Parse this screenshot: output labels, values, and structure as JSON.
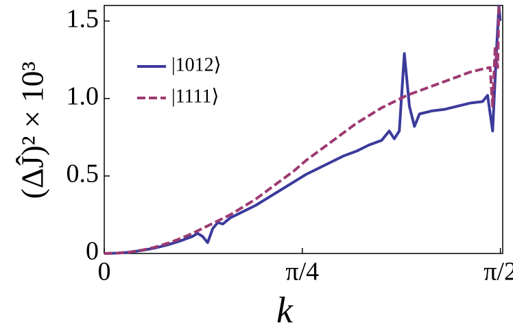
{
  "chart_data": {
    "type": "line",
    "xlabel": "k",
    "ylabel": "(ΔĴ)² × 10³",
    "xlim": [
      0,
      1.58
    ],
    "ylim": [
      0,
      1.6
    ],
    "xticks": [
      0,
      {
        "value": 0.7854,
        "label": "π/4"
      },
      {
        "value": 1.5708,
        "label": "π/2"
      }
    ],
    "yticks": [
      0,
      0.5,
      {
        "value": 1,
        "label": "1.0"
      },
      1.5
    ],
    "legend": "upper left",
    "series": [
      {
        "name": "|1012⟩",
        "color": "#3b3b9c",
        "dash": "solid",
        "x": [
          0,
          0.05,
          0.1,
          0.15,
          0.2,
          0.25,
          0.3,
          0.35,
          0.37,
          0.39,
          0.41,
          0.43,
          0.45,
          0.47,
          0.5,
          0.55,
          0.6,
          0.65,
          0.7,
          0.75,
          0.8,
          0.85,
          0.9,
          0.95,
          1.0,
          1.05,
          1.1,
          1.13,
          1.15,
          1.17,
          1.19,
          1.21,
          1.23,
          1.25,
          1.3,
          1.35,
          1.4,
          1.45,
          1.5,
          1.52,
          1.54,
          1.555,
          1.565,
          1.57
        ],
        "values": [
          0,
          0.002,
          0.008,
          0.02,
          0.035,
          0.055,
          0.08,
          0.11,
          0.13,
          0.11,
          0.07,
          0.16,
          0.2,
          0.19,
          0.23,
          0.27,
          0.31,
          0.36,
          0.41,
          0.46,
          0.51,
          0.55,
          0.59,
          0.63,
          0.66,
          0.7,
          0.73,
          0.79,
          0.74,
          0.79,
          1.29,
          0.95,
          0.82,
          0.9,
          0.92,
          0.93,
          0.95,
          0.97,
          0.98,
          1.02,
          0.79,
          1.3,
          1.6,
          1.5
        ]
      },
      {
        "name": "|1111⟩",
        "color": "#9c3a72",
        "dash": "dashed",
        "x": [
          0,
          0.05,
          0.1,
          0.15,
          0.2,
          0.25,
          0.3,
          0.35,
          0.4,
          0.45,
          0.5,
          0.55,
          0.6,
          0.65,
          0.7,
          0.75,
          0.8,
          0.85,
          0.9,
          0.95,
          1.0,
          1.05,
          1.1,
          1.15,
          1.2,
          1.25,
          1.3,
          1.35,
          1.4,
          1.45,
          1.5,
          1.53,
          1.54,
          1.55,
          1.56,
          1.565
        ],
        "values": [
          0,
          0.002,
          0.009,
          0.022,
          0.04,
          0.065,
          0.095,
          0.13,
          0.17,
          0.21,
          0.25,
          0.3,
          0.35,
          0.41,
          0.47,
          0.53,
          0.6,
          0.66,
          0.72,
          0.78,
          0.84,
          0.89,
          0.94,
          0.98,
          1.02,
          1.05,
          1.08,
          1.11,
          1.14,
          1.17,
          1.19,
          1.2,
          0.95,
          1.33,
          1.2,
          1.6
        ]
      }
    ]
  }
}
